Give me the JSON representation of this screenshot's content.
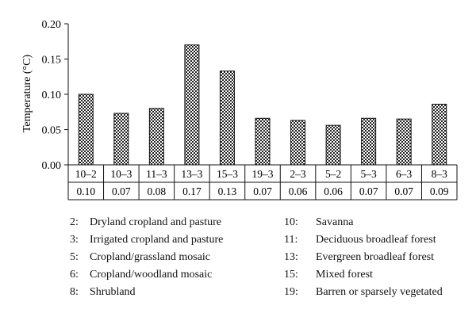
{
  "chart_data": {
    "type": "bar",
    "title": "",
    "xlabel": "",
    "ylabel": "Temperature (°C)",
    "ylim": [
      0,
      0.2
    ],
    "yticks": [
      "0.00",
      "0.05",
      "0.10",
      "0.15",
      "0.20"
    ],
    "grid": false,
    "bar_pattern": "checkered",
    "categories": [
      "10–2",
      "10–3",
      "11–3",
      "13–3",
      "15–3",
      "19–3",
      "2–3",
      "5–2",
      "5–3",
      "6–3",
      "8–3"
    ],
    "values": [
      0.1,
      0.073,
      0.08,
      0.17,
      0.133,
      0.066,
      0.063,
      0.056,
      0.066,
      0.065,
      0.086
    ],
    "value_labels": [
      "0.10",
      "0.07",
      "0.08",
      "0.17",
      "0.13",
      "0.07",
      "0.06",
      "0.06",
      "0.07",
      "0.07",
      "0.09"
    ]
  },
  "legend": {
    "left": [
      {
        "code": "2:",
        "text": "Dryland cropland and pasture"
      },
      {
        "code": "3:",
        "text": "Irrigated cropland and pasture"
      },
      {
        "code": "5:",
        "text": "Cropland/grassland mosaic"
      },
      {
        "code": "6:",
        "text": "Cropland/woodland mosaic"
      },
      {
        "code": "8:",
        "text": "Shrubland"
      }
    ],
    "right": [
      {
        "code": "10:",
        "text": "Savanna"
      },
      {
        "code": "11:",
        "text": "Deciduous broadleaf forest"
      },
      {
        "code": "13:",
        "text": "Evergreen broadleaf forest"
      },
      {
        "code": "15:",
        "text": "Mixed forest"
      },
      {
        "code": "19:",
        "text": "Barren or sparsely vegetated"
      }
    ]
  }
}
